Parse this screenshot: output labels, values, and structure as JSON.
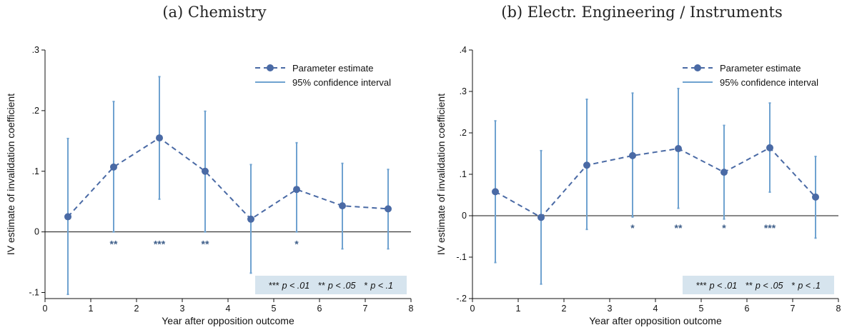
{
  "colors": {
    "estimate": "#4a6aa5",
    "ci": "#6fa2d0",
    "note_bg": "#d6e4ee",
    "star": "#3f5f8a"
  },
  "legend": {
    "estimate": "Parameter estimate",
    "ci": "95% confidence interval"
  },
  "significance_note": [
    {
      "stars": "***",
      "text": "p < .01"
    },
    {
      "stars": "**",
      "text": "p < .05"
    },
    {
      "stars": "*",
      "text": "p < .1"
    }
  ],
  "chart_data": [
    {
      "type": "line",
      "title": "(a) Chemistry",
      "xlabel": "Year after opposition outcome",
      "ylabel": "IV estimate of invalidation coefficient",
      "xlim": [
        0,
        8
      ],
      "ylim": [
        -0.11,
        0.3
      ],
      "xticks": [
        0,
        1,
        2,
        3,
        4,
        5,
        6,
        7,
        8
      ],
      "xtick_labels": [
        "0",
        "1",
        "2",
        "3",
        "4",
        "5",
        "6",
        "7",
        "8"
      ],
      "yticks": [
        -0.1,
        0,
        0.1,
        0.2,
        0.3
      ],
      "ytick_labels": [
        "-.1",
        "0",
        ".1",
        ".2",
        ".3"
      ],
      "legend_position": "top-right",
      "x": [
        0.5,
        1.5,
        2.5,
        3.5,
        4.5,
        5.5,
        6.5,
        7.5
      ],
      "estimate": [
        0.025,
        0.107,
        0.155,
        0.1,
        0.021,
        0.07,
        0.043,
        0.038
      ],
      "ci_low": [
        -0.103,
        0.0,
        0.054,
        0.0,
        -0.068,
        0.0,
        -0.028,
        -0.028
      ],
      "ci_high": [
        0.154,
        0.215,
        0.256,
        0.199,
        0.111,
        0.147,
        0.113,
        0.103
      ],
      "stars": [
        "",
        "**",
        "***",
        "**",
        "",
        "*",
        "",
        ""
      ]
    },
    {
      "type": "line",
      "title": "(b) Electr. Engineering / Instruments",
      "xlabel": "Year after opposition outcome",
      "ylabel": "IV estimate of invalidation coefficient",
      "xlim": [
        0,
        8
      ],
      "ylim": [
        -0.2,
        0.4
      ],
      "xticks": [
        0,
        1,
        2,
        3,
        4,
        5,
        6,
        7,
        8
      ],
      "xtick_labels": [
        "0",
        "1",
        "2",
        "3",
        "4",
        "5",
        "6",
        "7",
        "8"
      ],
      "yticks": [
        -0.2,
        -0.1,
        0,
        0.1,
        0.2,
        0.3,
        0.4
      ],
      "ytick_labels": [
        "-.2",
        "-.1",
        "0",
        ".1",
        ".2",
        ".3",
        ".4"
      ],
      "legend_position": "top-right",
      "x": [
        0.5,
        1.5,
        2.5,
        3.5,
        4.5,
        5.5,
        6.5,
        7.5
      ],
      "estimate": [
        0.058,
        -0.004,
        0.122,
        0.145,
        0.162,
        0.105,
        0.164,
        0.045
      ],
      "ci_low": [
        -0.113,
        -0.165,
        -0.033,
        -0.003,
        0.018,
        -0.008,
        0.057,
        -0.054
      ],
      "ci_high": [
        0.229,
        0.157,
        0.281,
        0.296,
        0.307,
        0.218,
        0.272,
        0.143
      ],
      "stars": [
        "",
        "",
        "",
        "*",
        "**",
        "*",
        "***",
        ""
      ]
    }
  ]
}
